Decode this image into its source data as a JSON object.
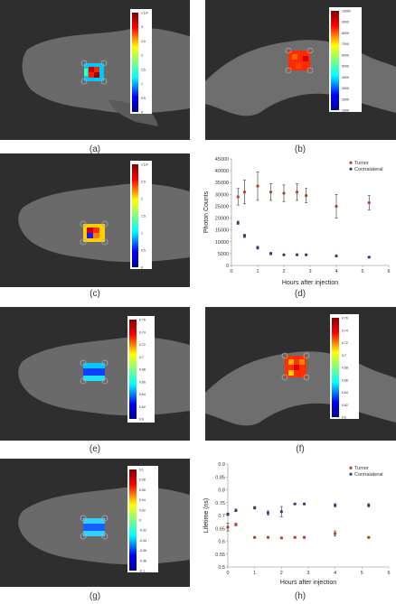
{
  "captions": [
    "(a)",
    "(b)",
    "(c)",
    "(d)",
    "(e)",
    "(f)",
    "(g)",
    "(h)"
  ],
  "colors": {
    "tumor": "#c0392b",
    "contralateral": "#2c3e7a",
    "errorbar": "#333333"
  },
  "panels": {
    "a": {
      "colorbar_ticks": [
        "x 10³",
        "3",
        "2.5",
        "2",
        "1.5",
        "1",
        "0.5",
        "0"
      ]
    },
    "b": {
      "colorbar_ticks": [
        "10000",
        "9000",
        "8000",
        "7000",
        "6000",
        "5000",
        "4000",
        "3000",
        "2000",
        "1000"
      ]
    },
    "c": {
      "colorbar_ticks": [
        "x 10³",
        "2.5",
        "2",
        "1.5",
        "1",
        "0.5",
        "0"
      ]
    },
    "e": {
      "colorbar_ticks": [
        "0.76",
        "0.74",
        "0.72",
        "0.7",
        "0.68",
        "0.66",
        "0.64",
        "0.62",
        "0.6"
      ]
    },
    "f": {
      "colorbar_ticks": [
        "0.76",
        "0.74",
        "0.72",
        "0.7",
        "0.68",
        "0.66",
        "0.64",
        "0.62",
        "0.6"
      ]
    },
    "g": {
      "colorbar_ticks": [
        "0.1",
        "0.08",
        "0.06",
        "0.04",
        "0.02",
        "0",
        "-0.02",
        "-0.04",
        "-0.06",
        "-0.08",
        "-0.1"
      ]
    }
  },
  "chart_data": [
    {
      "type": "scatter",
      "title": "",
      "xlabel": "Hours after injection",
      "ylabel": "Photon Counts",
      "xlim": [
        0,
        6
      ],
      "ylim": [
        0,
        45000
      ],
      "xticks": [
        "0",
        "1",
        "2",
        "3",
        "4",
        "5",
        "6"
      ],
      "yticks": [
        "0",
        "5000",
        "10000",
        "15000",
        "20000",
        "25000",
        "30000",
        "35000",
        "40000",
        "45000"
      ],
      "legend_position": "top-right",
      "series": [
        {
          "name": "Tumor",
          "x": [
            0.25,
            0.5,
            1.0,
            1.5,
            2.0,
            2.5,
            2.85,
            4.0,
            5.25
          ],
          "y": [
            29000,
            31000,
            33500,
            31000,
            30500,
            31000,
            29500,
            25000,
            26500
          ],
          "err": [
            3500,
            5000,
            6000,
            3500,
            3500,
            3500,
            3000,
            5000,
            3000
          ]
        },
        {
          "name": "Contralateral",
          "x": [
            0.25,
            0.5,
            1.0,
            1.5,
            2.0,
            2.5,
            2.85,
            4.0,
            5.25
          ],
          "y": [
            18000,
            12500,
            7500,
            5000,
            4500,
            4500,
            4500,
            4000,
            3500
          ],
          "err": [
            700,
            700,
            600,
            500,
            300,
            300,
            300,
            300,
            300
          ]
        }
      ]
    },
    {
      "type": "scatter",
      "title": "",
      "xlabel": "Hours after injection",
      "ylabel": "Lifetime (ns)",
      "xlim": [
        0,
        6
      ],
      "ylim": [
        0.5,
        0.9
      ],
      "xticks": [
        "0",
        "1",
        "2",
        "3",
        "4",
        "5",
        "6"
      ],
      "yticks": [
        "0.5",
        "0.55",
        "0.6",
        "0.65",
        "0.7",
        "0.75",
        "0.8",
        "0.85",
        "0.9"
      ],
      "legend_position": "top-right",
      "series": [
        {
          "name": "Tumor",
          "x": [
            0,
            0.3,
            1.0,
            1.5,
            2.0,
            2.5,
            2.85,
            4.0,
            5.25
          ],
          "y": [
            0.655,
            0.665,
            0.615,
            0.615,
            0.613,
            0.615,
            0.615,
            0.63,
            0.615
          ],
          "err": [
            0.015,
            0.005,
            0.003,
            0.003,
            0.003,
            0.003,
            0.003,
            0.01,
            0.003
          ]
        },
        {
          "name": "Contralateral",
          "x": [
            0,
            0.3,
            1.0,
            1.5,
            2.0,
            2.5,
            2.85,
            4.0,
            5.25
          ],
          "y": [
            0.705,
            0.72,
            0.73,
            0.71,
            0.715,
            0.745,
            0.745,
            0.74,
            0.74
          ],
          "err": [
            0.005,
            0.005,
            0.005,
            0.008,
            0.02,
            0.003,
            0.003,
            0.006,
            0.006
          ]
        }
      ]
    }
  ]
}
